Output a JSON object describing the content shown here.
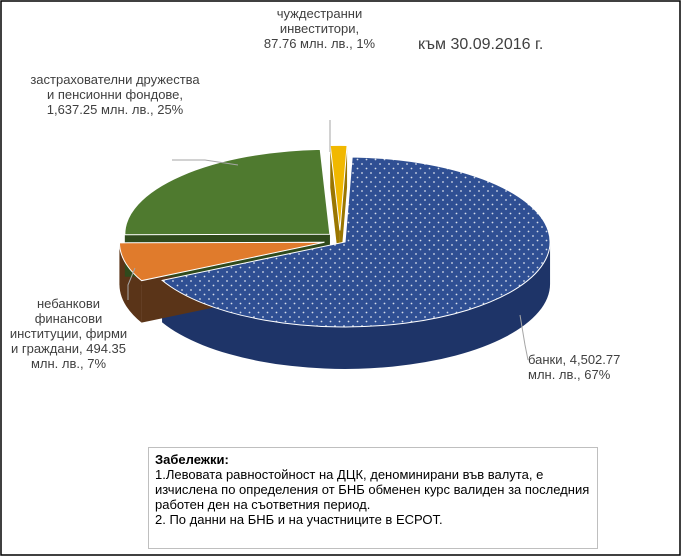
{
  "chart_data": {
    "type": "pie",
    "subtitle": "към 30.09.2016 г.",
    "categories": [
      "банки,",
      "небанкови финансови институции, фирми и граждани,",
      "застрахователни дружества и пенсионни фондове,",
      "чуждестранни инвеститори,"
    ],
    "values": [
      4502.77,
      494.35,
      1637.25,
      87.76
    ],
    "value_labels": [
      "4,502.77 млн. лв.,",
      "494.35 млн. лв.,",
      "1,637.25 млн. лв.,",
      "87.76 млн. лв.,"
    ],
    "percents": [
      67,
      7,
      25,
      1
    ],
    "percent_labels": [
      "67%",
      "7%",
      "25%",
      "1%"
    ],
    "colors": [
      "#2f4f93",
      "#e07b2c",
      "#4f7a2f",
      "#f1b800"
    ],
    "side_colors": [
      "#1e3468",
      "#5a3418",
      "#2f4a1c",
      "#9a7600"
    ]
  },
  "notes": {
    "title": "Забележки:",
    "lines": [
      "1.Левовата равностойност на ДЦК, деноминирани във валута, е изчислена по определения от БНБ обменен курс валиден за последния работен ден на съответния период.",
      "2. По данни на БНБ и на участниците в ЕСРОТ."
    ]
  }
}
